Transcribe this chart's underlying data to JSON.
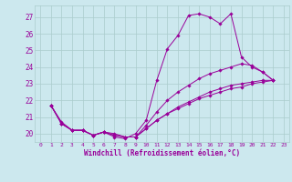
{
  "background_color": "#cce8ee",
  "grid_color": "#aacccc",
  "line_color": "#990099",
  "marker_color": "#990099",
  "xlabel": "Windchill (Refroidissement éolien,°C)",
  "ylabel_ticks": [
    20,
    21,
    22,
    23,
    24,
    25,
    26,
    27
  ],
  "xlim": [
    -0.5,
    23.5
  ],
  "ylim": [
    19.5,
    27.7
  ],
  "xticks": [
    0,
    1,
    2,
    3,
    4,
    5,
    6,
    7,
    8,
    9,
    10,
    11,
    12,
    13,
    14,
    15,
    16,
    17,
    18,
    19,
    20,
    21,
    22,
    23
  ],
  "series": [
    [
      21.7,
      20.6,
      20.2,
      20.2,
      19.9,
      20.1,
      19.8,
      19.7,
      20.0,
      20.8,
      23.2,
      25.1,
      25.9,
      27.1,
      27.2,
      27.0,
      26.6,
      27.2,
      24.6,
      24.0,
      23.7,
      23.2
    ],
    [
      21.7,
      20.6,
      20.2,
      20.2,
      19.9,
      20.1,
      20.0,
      19.8,
      19.8,
      20.5,
      21.3,
      22.0,
      22.5,
      22.9,
      23.3,
      23.6,
      23.8,
      24.0,
      24.2,
      24.1,
      23.7,
      23.2
    ],
    [
      21.7,
      20.7,
      20.2,
      20.2,
      19.9,
      20.1,
      19.9,
      19.8,
      19.8,
      20.3,
      20.8,
      21.2,
      21.6,
      21.9,
      22.2,
      22.5,
      22.7,
      22.9,
      23.0,
      23.1,
      23.2,
      23.2
    ],
    [
      21.7,
      20.6,
      20.2,
      20.2,
      19.9,
      20.1,
      19.9,
      19.8,
      19.8,
      20.3,
      20.8,
      21.2,
      21.5,
      21.8,
      22.1,
      22.3,
      22.5,
      22.7,
      22.8,
      23.0,
      23.1,
      23.2
    ]
  ],
  "x_start": 1,
  "figsize": [
    3.2,
    2.0
  ],
  "dpi": 100
}
